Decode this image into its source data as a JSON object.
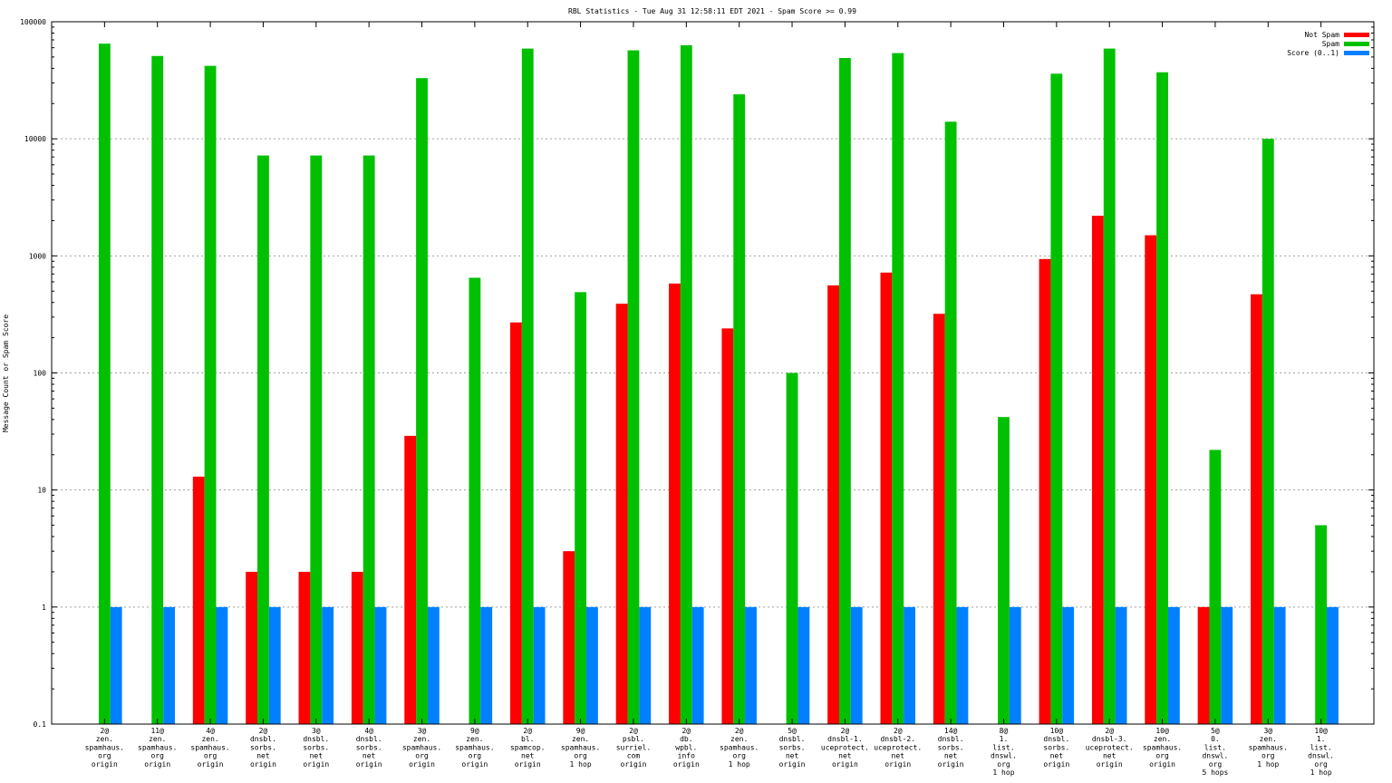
{
  "chart_data": {
    "type": "bar",
    "title": "RBL Statistics - Tue Aug 31 12:58:11 EDT 2021 - Spam Score >= 0.99",
    "ylabel": "Message Count or Spam Score",
    "xlabel": "",
    "yscale": "log",
    "ylim": [
      0.1,
      100000
    ],
    "ytick_labels": [
      "0.1",
      "1",
      "10",
      "100",
      "1000",
      "10000",
      "100000"
    ],
    "grid": true,
    "legend_position": "top-right",
    "categories": [
      [
        "2@",
        "zen.",
        "spamhaus.",
        "org",
        "origin"
      ],
      [
        "11@",
        "zen.",
        "spamhaus.",
        "org",
        "origin"
      ],
      [
        "4@",
        "zen.",
        "spamhaus.",
        "org",
        "origin"
      ],
      [
        "2@",
        "dnsbl.",
        "sorbs.",
        "net",
        "origin"
      ],
      [
        "3@",
        "dnsbl.",
        "sorbs.",
        "net",
        "origin"
      ],
      [
        "4@",
        "dnsbl.",
        "sorbs.",
        "net",
        "origin"
      ],
      [
        "3@",
        "zen.",
        "spamhaus.",
        "org",
        "origin"
      ],
      [
        "9@",
        "zen.",
        "spamhaus.",
        "org",
        "origin"
      ],
      [
        "2@",
        "bl.",
        "spamcop.",
        "net",
        "origin"
      ],
      [
        "9@",
        "zen.",
        "spamhaus.",
        "org",
        "1 hop"
      ],
      [
        "2@",
        "psbl.",
        "surriel.",
        "com",
        "origin"
      ],
      [
        "2@",
        "db.",
        "wpbl.",
        "info",
        "origin"
      ],
      [
        "2@",
        "zen.",
        "spamhaus.",
        "org",
        "1 hop"
      ],
      [
        "5@",
        "dnsbl.",
        "sorbs.",
        "net",
        "origin"
      ],
      [
        "2@",
        "dnsbl-1.",
        "uceprotect.",
        "net",
        "origin"
      ],
      [
        "2@",
        "dnsbl-2.",
        "uceprotect.",
        "net",
        "origin"
      ],
      [
        "14@",
        "dnsbl.",
        "sorbs.",
        "net",
        "origin"
      ],
      [
        "8@",
        "1.",
        "list.",
        "dnswl.",
        "org",
        "1 hop"
      ],
      [
        "10@",
        "dnsbl.",
        "sorbs.",
        "net",
        "origin"
      ],
      [
        "2@",
        "dnsbl-3.",
        "uceprotect.",
        "net",
        "origin"
      ],
      [
        "10@",
        "zen.",
        "spamhaus.",
        "org",
        "origin"
      ],
      [
        "5@",
        "0.",
        "list.",
        "dnswl.",
        "org",
        "5 hops"
      ],
      [
        "3@",
        "zen.",
        "spamhaus.",
        "org",
        "1 hop"
      ],
      [
        "10@",
        "1.",
        "list.",
        "dnswl.",
        "org",
        "1 hop"
      ]
    ],
    "series": [
      {
        "name": "Not Spam",
        "color": "#ff0000",
        "values": [
          null,
          null,
          13,
          2,
          2,
          2,
          29,
          null,
          270,
          3,
          390,
          580,
          240,
          null,
          560,
          720,
          320,
          null,
          940,
          2200,
          1500,
          1,
          470,
          null
        ]
      },
      {
        "name": "Spam",
        "color": "#00c000",
        "values": [
          65000,
          51000,
          42000,
          7200,
          7200,
          7200,
          33000,
          650,
          59000,
          490,
          57000,
          63000,
          24000,
          100,
          49000,
          54000,
          14000,
          42,
          36000,
          59000,
          37000,
          22,
          10000,
          5
        ]
      },
      {
        "name": "Score (0..1)",
        "color": "#0080ff",
        "values": [
          1,
          1,
          1,
          1,
          1,
          1,
          1,
          1,
          1,
          1,
          1,
          1,
          1,
          1,
          1,
          1,
          1,
          1,
          1,
          1,
          1,
          1,
          1,
          1
        ]
      }
    ]
  }
}
